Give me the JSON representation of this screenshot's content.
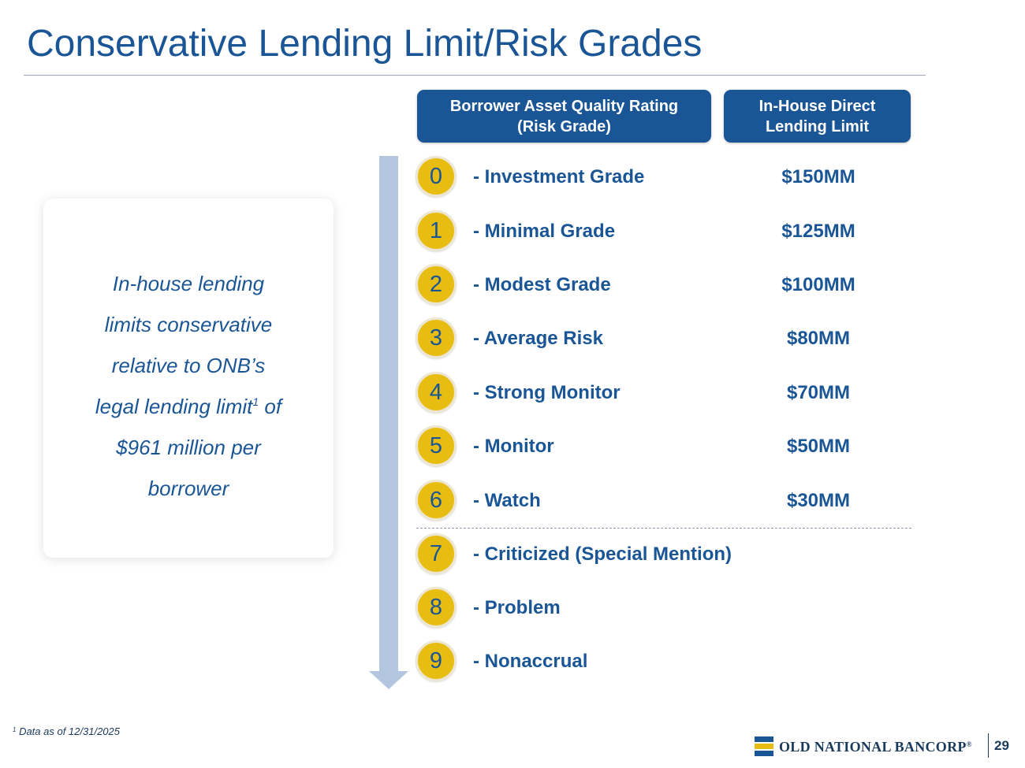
{
  "title": "Conservative Lending Limit/Risk Grades",
  "headers": {
    "rating_line1": "Borrower Asset Quality Rating",
    "rating_line2": "(Risk Grade)",
    "limit_line1": "In-House Direct",
    "limit_line2": "Lending Limit"
  },
  "callout": {
    "line1": "In-house lending",
    "line2": "limits conservative",
    "line3": "relative to ONB’s",
    "line4_pre": "legal lending limit",
    "line4_sup": "1",
    "line4_post": " of",
    "line5": "$961 million per",
    "line6": "borrower"
  },
  "grades": [
    {
      "num": "0",
      "label": "- Investment Grade",
      "limit": "$150MM"
    },
    {
      "num": "1",
      "label": "- Minimal Grade",
      "limit": "$125MM"
    },
    {
      "num": "2",
      "label": "- Modest Grade",
      "limit": "$100MM"
    },
    {
      "num": "3",
      "label": "- Average Risk",
      "limit": "$80MM"
    },
    {
      "num": "4",
      "label": "- Strong Monitor",
      "limit": "$70MM"
    },
    {
      "num": "5",
      "label": "- Monitor",
      "limit": "$50MM"
    },
    {
      "num": "6",
      "label": "- Watch",
      "limit": "$30MM"
    },
    {
      "num": "7",
      "label": "- Criticized (Special Mention)",
      "limit": ""
    },
    {
      "num": "8",
      "label": "- Problem",
      "limit": ""
    },
    {
      "num": "9",
      "label": "- Nonaccrual",
      "limit": ""
    }
  ],
  "footnote": {
    "sup": "1",
    "text": " Data as of 12/31/2025"
  },
  "logo": {
    "text": "OLD NATIONAL BANCORP",
    "mark": "®"
  },
  "page_number": "29",
  "colors": {
    "brand_blue": "#1a5596",
    "gold": "#e8bd12",
    "arrow": "#b3c6df"
  }
}
